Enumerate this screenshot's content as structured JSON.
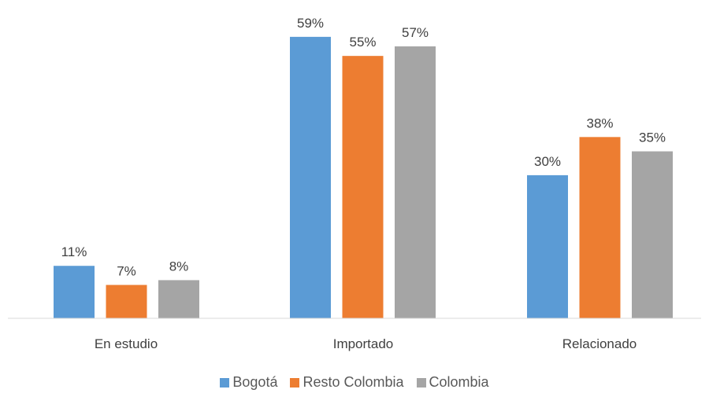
{
  "chart_data": {
    "type": "bar",
    "categories": [
      "En estudio",
      "Importado",
      "Relacionado"
    ],
    "series": [
      {
        "name": "Bogotá",
        "values": [
          11,
          59,
          30
        ],
        "labels": [
          "11%",
          "59%",
          "30%"
        ],
        "color": "#5B9BD5"
      },
      {
        "name": "Resto Colombia",
        "values": [
          7,
          55,
          38
        ],
        "labels": [
          "7%",
          "55%",
          "38%"
        ],
        "color": "#ED7D31"
      },
      {
        "name": "Colombia",
        "values": [
          8,
          57,
          35
        ],
        "labels": [
          "8%",
          "57%",
          "35%"
        ],
        "color": "#A5A5A5"
      }
    ],
    "ylim": [
      0,
      60
    ],
    "grid": false,
    "legend_position": "bottom"
  }
}
